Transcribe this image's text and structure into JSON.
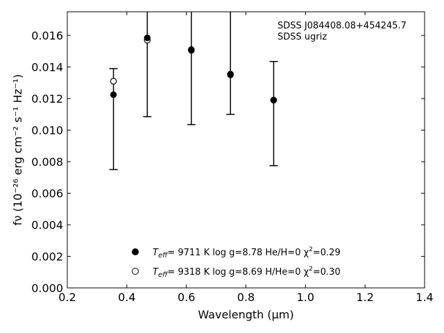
{
  "chart_data": {
    "type": "scatter",
    "xlabel": "Wavelength (μm)",
    "ylabel": "fν (10⁻²⁶ erg cm⁻² s⁻¹ Hz⁻¹)",
    "xlim": [
      0.2,
      1.4
    ],
    "ylim": [
      0.0,
      0.0175
    ],
    "xticks": [
      "0.2",
      "0.4",
      "0.6",
      "0.8",
      "1.0",
      "1.2",
      "1.4"
    ],
    "yticks": [
      "0.000",
      "0.002",
      "0.004",
      "0.006",
      "0.008",
      "0.010",
      "0.012",
      "0.014",
      "0.016"
    ],
    "grid": false,
    "annotations": [
      "SDSS J084408.08+454245.7",
      "SDSS ugriz"
    ],
    "observed": {
      "x": [
        0.3551,
        0.4686,
        0.6166,
        0.748,
        0.8932
      ],
      "y": [
        0.01225,
        0.01585,
        0.01505,
        0.0135,
        0.0119
      ],
      "yerr_low": [
        0.0075,
        0.01085,
        0.01035,
        0.011,
        0.00775
      ],
      "yerr_high": [
        0.0139,
        0.0175,
        0.0175,
        0.0175,
        0.01435
      ]
    },
    "series": [
      {
        "marker": "filled",
        "label_parts": [
          "T",
          "eff",
          "=  9711 K  log g=8.78  He/H=0  χ",
          "2",
          "=0.29"
        ],
        "x": [
          0.3551,
          0.4686,
          0.6166,
          0.748,
          0.8932
        ],
        "y": [
          0.01225,
          0.01585,
          0.01505,
          0.0135,
          0.0119
        ]
      },
      {
        "marker": "open",
        "label_parts": [
          "T",
          "eff",
          "=  9318 K  log g=8.69  H/He=0  χ",
          "2",
          "=0.30"
        ],
        "x": [
          0.3551,
          0.4686,
          0.6166,
          0.748,
          0.8932
        ],
        "y": [
          0.0131,
          0.0157,
          0.0151,
          0.01355,
          0.0119
        ]
      }
    ]
  }
}
